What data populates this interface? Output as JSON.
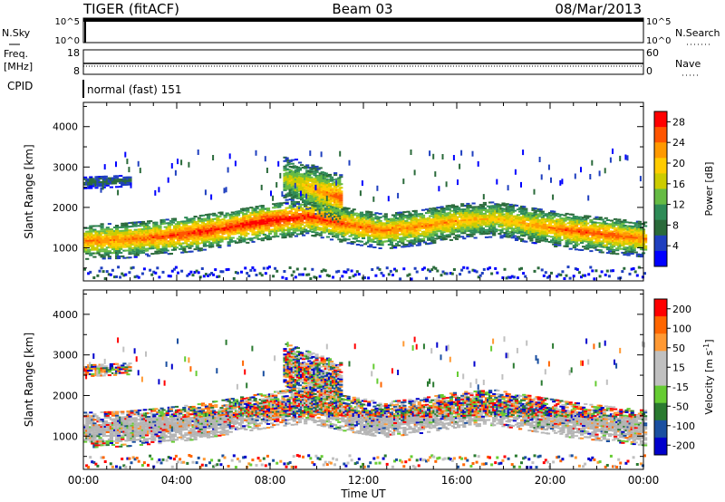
{
  "header": {
    "station": "TIGER (fitACF)",
    "beam": "Beam 03",
    "date": "08/Mar/2013"
  },
  "strips": {
    "nsky_label": "N.Sky",
    "nsky_ticks": [
      "10^5",
      "10^0"
    ],
    "nsearch_label": "N.Search",
    "nsearch_ticks": [
      "10^5",
      "10^0"
    ],
    "freq_label": "Freq.",
    "freq_unit": "[MHz]",
    "freq_ticks": [
      "18",
      "8"
    ],
    "nave_label": "Nave",
    "nave_ticks": [
      "60",
      "0"
    ],
    "cpid_label": "CPID",
    "cpid_text": "normal (fast) 151"
  },
  "colors": {
    "scale": [
      "#0000ff",
      "#1f3fbf",
      "#2a6a3a",
      "#2e8b57",
      "#66bb44",
      "#cccc00",
      "#ffcc00",
      "#ff9900",
      "#ff5500",
      "#ff0000"
    ],
    "velocity": [
      "#0000cc",
      "#1a4fa0",
      "#2a7a30",
      "#66cc33",
      "#c0c0c0",
      "#c0c0c0",
      "#ff9933",
      "#ff6600",
      "#ff0000"
    ],
    "ground": "#b4b4b4"
  },
  "chart_data": [
    {
      "type": "heatmap",
      "title": "",
      "xlabel": "Time UT",
      "ylabel": "Slant Range [km]",
      "xticks": [
        "00:00",
        "04:00",
        "08:00",
        "12:00",
        "16:00",
        "20:00",
        "00:00"
      ],
      "yticks": [
        "1000",
        "2000",
        "3000",
        "4000"
      ],
      "xlim_hours": [
        0,
        24
      ],
      "ylim_km": [
        180,
        4600
      ],
      "colorbar": {
        "label": "Power [dB]",
        "ticks": [
          "4",
          "8",
          "12",
          "16",
          "20",
          "24",
          "28"
        ],
        "range": [
          0,
          30
        ]
      },
      "bands": [
        {
          "t0": 0,
          "t1": 24,
          "r_center": [
            1150,
            1170,
            1250,
            1350,
            1500,
            1650,
            1750,
            1550,
            1400,
            1500,
            1650,
            1700,
            1550,
            1400,
            1300,
            1200
          ],
          "width_km": 450,
          "peak_db": [
            24,
            24,
            26,
            28,
            28,
            30,
            28,
            26,
            24,
            24,
            22,
            20,
            22,
            26,
            26,
            24
          ]
        },
        {
          "t0": 0,
          "t1": 2,
          "r_center": [
            2600,
            2650
          ],
          "width_km": 150,
          "peak_db": [
            8,
            8
          ]
        },
        {
          "t0": 8.5,
          "t1": 11,
          "r_center": [
            2700,
            2200
          ],
          "width_km": 600,
          "peak_db": [
            16,
            26
          ]
        }
      ]
    },
    {
      "type": "heatmap",
      "title": "",
      "xlabel": "Time UT",
      "ylabel": "Slant Range [km]",
      "xticks": [
        "00:00",
        "04:00",
        "08:00",
        "12:00",
        "16:00",
        "20:00",
        "00:00"
      ],
      "yticks": [
        "1000",
        "2000",
        "3000",
        "4000"
      ],
      "xlim_hours": [
        0,
        24
      ],
      "ylim_km": [
        180,
        4600
      ],
      "colorbar": {
        "label": "Velocity [m s^-1]",
        "ticks": [
          "200",
          "100",
          "50",
          "15",
          "-15",
          "-50",
          "-100",
          "-200"
        ],
        "range": [
          -250,
          250
        ]
      },
      "ground_scatter_km": [
        850,
        1450
      ]
    }
  ]
}
